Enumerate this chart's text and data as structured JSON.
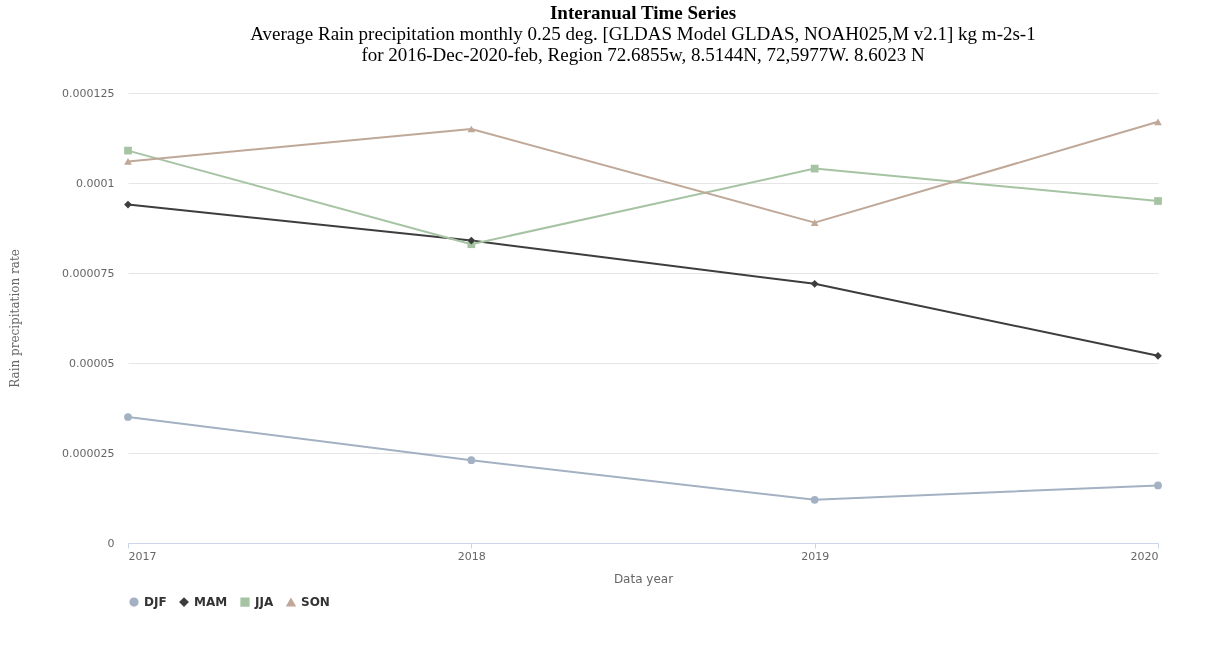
{
  "chart_data": {
    "type": "line",
    "title": "Interanual Time Series",
    "subtitle": "Average Rain precipitation monthly 0.25 deg. [GLDAS Model GLDAS, NOAH025,M v2.1] kg m-2s-1 for 2016-Dec-2020-feb, Region 72.6855w, 8.5144N, 72,5977W. 8.6023 N",
    "xlabel": "Data year",
    "ylabel": "Rain precipitation rate",
    "x": [
      2017,
      2018,
      2019,
      2020
    ],
    "series": [
      {
        "name": "DJF",
        "color": "#a3b1c2",
        "marker": "circle",
        "values": [
          3.5e-05,
          2.3e-05,
          1.2e-05,
          1.6e-05
        ]
      },
      {
        "name": "MAM",
        "color": "#3d3d3d",
        "marker": "diamond",
        "values": [
          9.4e-05,
          8.4e-05,
          7.2e-05,
          5.2e-05
        ]
      },
      {
        "name": "JJA",
        "color": "#a6c4a4",
        "marker": "square",
        "values": [
          0.000109,
          8.3e-05,
          0.000104,
          9.5e-05
        ]
      },
      {
        "name": "SON",
        "color": "#bfa898",
        "marker": "triangle",
        "values": [
          0.000106,
          0.000115,
          8.9e-05,
          0.000117
        ]
      }
    ],
    "xlim": [
      2017,
      2020
    ],
    "xticks": [
      2017,
      2018,
      2019,
      2020
    ],
    "ylim": [
      0,
      0.000125
    ],
    "yticks": [
      0,
      {
        "value": 2.5e-05,
        "label": "0.000025"
      },
      {
        "value": 5e-05,
        "label": "0.00005"
      },
      {
        "value": 7.5e-05,
        "label": "0.000075"
      },
      0.0001,
      0.000125
    ],
    "grid": "y",
    "legend": "bottom",
    "line_style": "solid"
  }
}
